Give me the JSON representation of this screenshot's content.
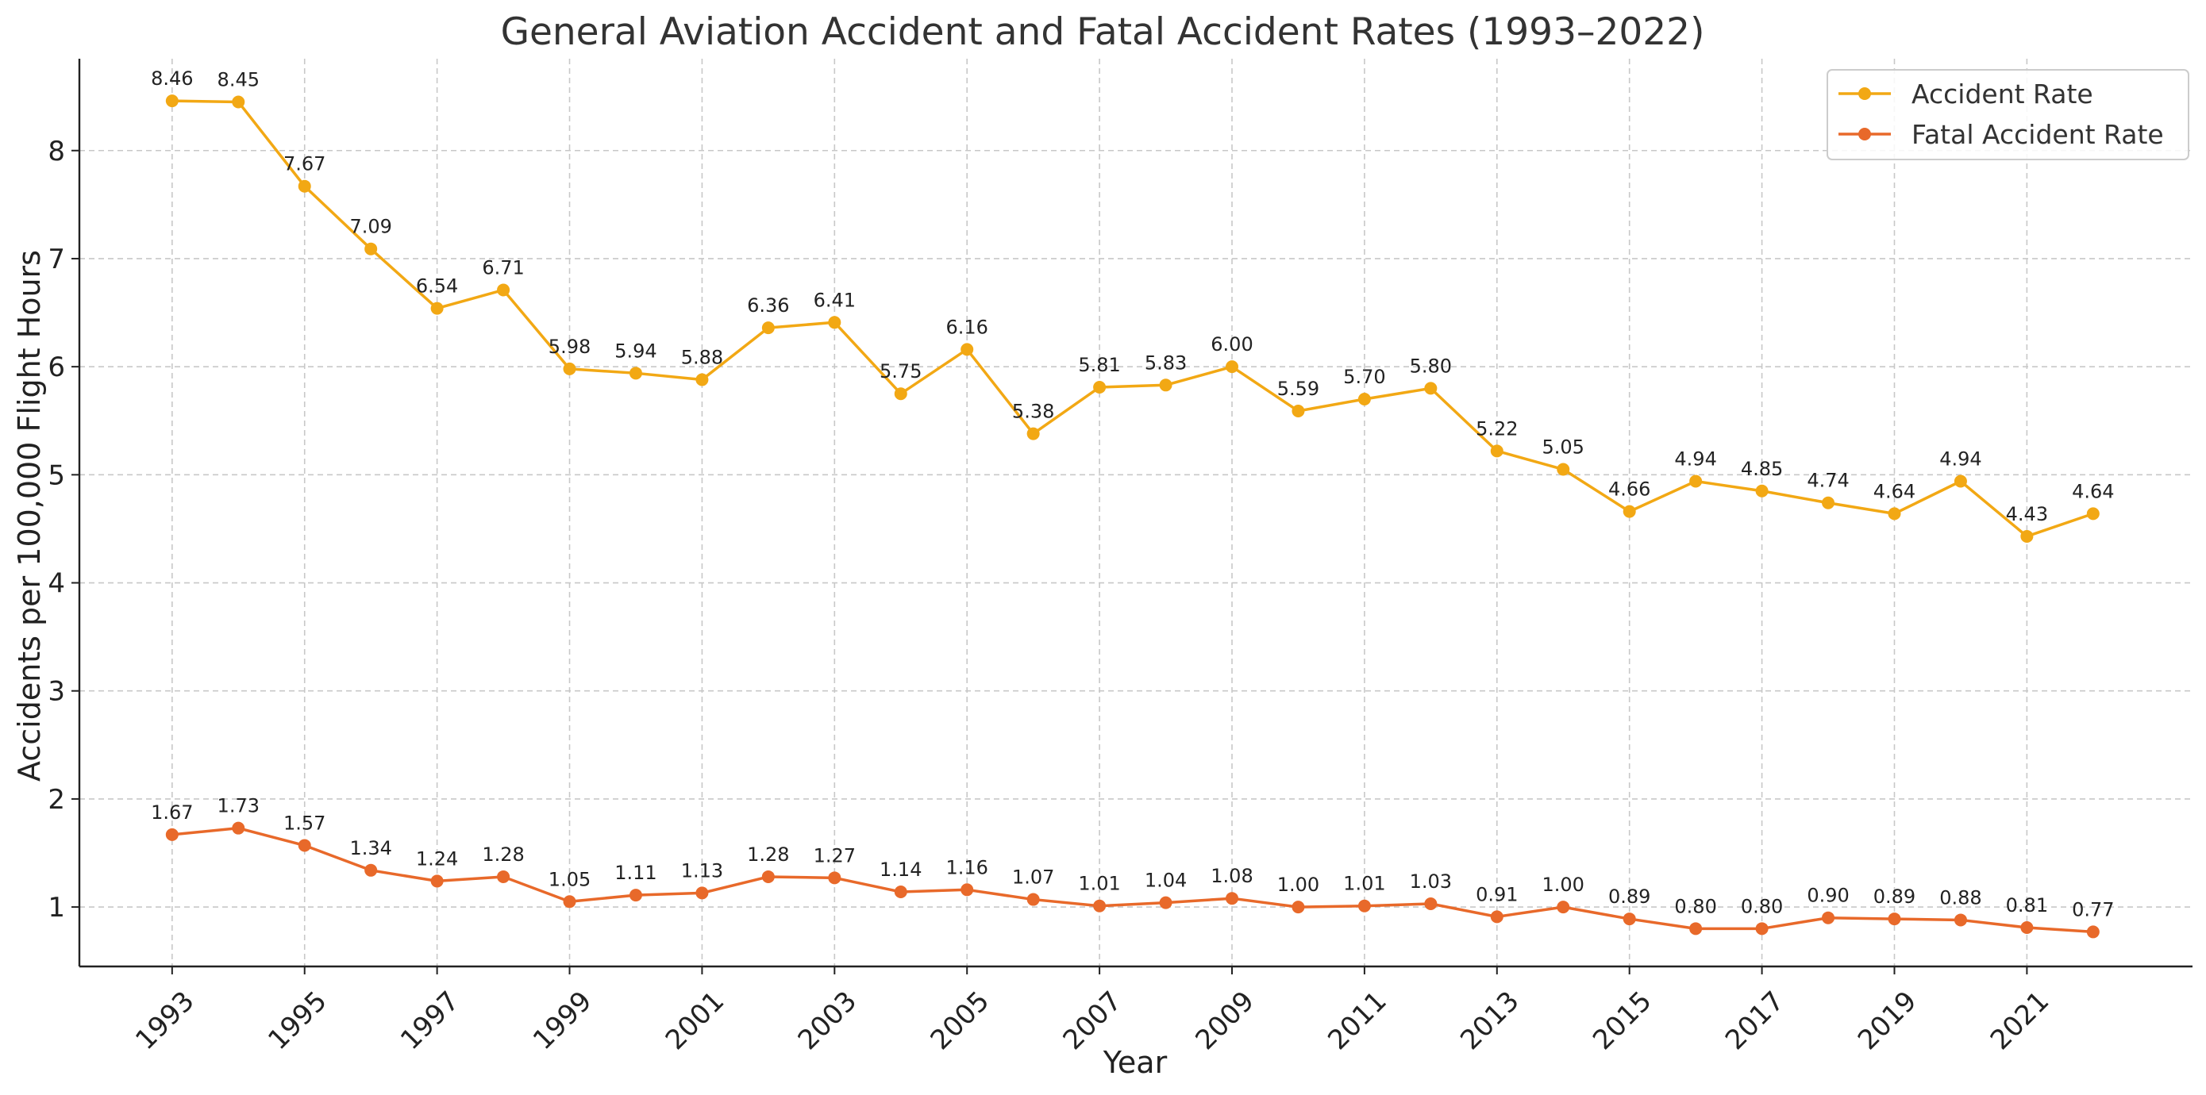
{
  "chart_data": {
    "type": "line",
    "title": "General Aviation Accident and Fatal Accident Rates (1993–2022)",
    "xlabel": "Year",
    "ylabel": "Accidents per 100,000 Flight Hours",
    "x": [
      1993,
      1994,
      1995,
      1996,
      1997,
      1998,
      1999,
      2000,
      2001,
      2002,
      2003,
      2004,
      2005,
      2006,
      2007,
      2008,
      2009,
      2010,
      2011,
      2012,
      2013,
      2014,
      2015,
      2016,
      2017,
      2018,
      2019,
      2020,
      2021,
      2022
    ],
    "x_ticks": [
      "1993",
      "1995",
      "1997",
      "1999",
      "2001",
      "2003",
      "2005",
      "2007",
      "2009",
      "2011",
      "2013",
      "2015",
      "2017",
      "2019",
      "2021"
    ],
    "y_ticks": [
      "1",
      "2",
      "3",
      "4",
      "5",
      "6",
      "7",
      "8"
    ],
    "xlim": [
      1991.6,
      2023.5
    ],
    "ylim": [
      0.45,
      8.85
    ],
    "grid": true,
    "legend_position": "top-right",
    "series": [
      {
        "name": "Accident Rate",
        "color": "#f2a814",
        "values": [
          8.46,
          8.45,
          7.67,
          7.09,
          6.54,
          6.71,
          5.98,
          5.94,
          5.88,
          6.36,
          6.41,
          5.75,
          6.16,
          5.38,
          5.81,
          5.83,
          6.0,
          5.59,
          5.7,
          5.8,
          5.22,
          5.05,
          4.66,
          4.94,
          4.85,
          4.74,
          4.64,
          4.94,
          4.43,
          4.64
        ],
        "labels": [
          "8.46",
          "8.45",
          "7.67",
          "7.09",
          "6.54",
          "6.71",
          "5.98",
          "5.94",
          "5.88",
          "6.36",
          "6.41",
          "5.75",
          "6.16",
          "5.38",
          "5.81",
          "5.83",
          "6.00",
          "5.59",
          "5.70",
          "5.80",
          "5.22",
          "5.05",
          "4.66",
          "4.94",
          "4.85",
          "4.74",
          "4.64",
          "4.94",
          "4.43",
          "4.64"
        ]
      },
      {
        "name": "Fatal Accident Rate",
        "color": "#e8692a",
        "values": [
          1.67,
          1.73,
          1.57,
          1.34,
          1.24,
          1.28,
          1.05,
          1.11,
          1.13,
          1.28,
          1.27,
          1.14,
          1.16,
          1.07,
          1.01,
          1.04,
          1.08,
          1.0,
          1.01,
          1.03,
          0.91,
          1.0,
          0.89,
          0.8,
          0.8,
          0.9,
          0.89,
          0.88,
          0.81,
          0.77
        ],
        "labels": [
          "1.67",
          "1.73",
          "1.57",
          "1.34",
          "1.24",
          "1.28",
          "1.05",
          "1.11",
          "1.13",
          "1.28",
          "1.27",
          "1.14",
          "1.16",
          "1.07",
          "1.01",
          "1.04",
          "1.08",
          "1.00",
          "1.01",
          "1.03",
          "0.91",
          "1.00",
          "0.89",
          "0.80",
          "0.80",
          "0.90",
          "0.89",
          "0.88",
          "0.81",
          "0.77"
        ]
      }
    ]
  }
}
